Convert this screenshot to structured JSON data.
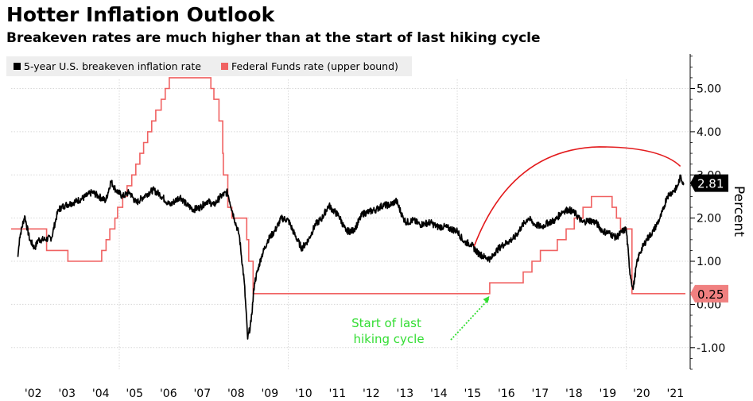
{
  "header": {
    "title": "Hotter Inflation Outlook",
    "subtitle": "Breakeven rates are much higher than at the start of last hiking cycle"
  },
  "chart_data": {
    "type": "line",
    "ylabel": "Percent",
    "ylim": [
      -1.5,
      5.8
    ],
    "xlim": [
      2001.8,
      2021.75
    ],
    "yticks": [
      -1.0,
      0.0,
      1.0,
      2.0,
      3.0,
      4.0,
      5.0
    ],
    "ytick_labels": [
      "-1.00",
      "0.00",
      "1.00",
      "2.00",
      "3.00",
      "4.00",
      "5.00"
    ],
    "xticks": [
      2002,
      2003,
      2004,
      2005,
      2006,
      2007,
      2008,
      2009,
      2010,
      2011,
      2012,
      2013,
      2014,
      2015,
      2016,
      2017,
      2018,
      2019,
      2020,
      2021
    ],
    "xtick_labels": [
      "'02",
      "'03",
      "'04",
      "'05",
      "'06",
      "'07",
      "'08",
      "'09",
      "'10",
      "'11",
      "'12",
      "'13",
      "'14",
      "'15",
      "'16",
      "'17",
      "'18",
      "'19",
      "'20",
      "'21"
    ],
    "legend": [
      "5-year U.S. breakeven inflation rate",
      "Federal Funds rate (upper bound)"
    ],
    "last_values": {
      "breakeven": "2.81",
      "fed_funds": "0.25"
    },
    "annotation": {
      "line1": "Start of last",
      "line2": "hiking cycle",
      "x": 2015.95,
      "y": 0.25
    },
    "series": [
      {
        "name": "5-year U.S. breakeven inflation rate",
        "color": "#000000",
        "x": [
          2002.0,
          2002.05,
          2002.2,
          2002.35,
          2002.5,
          2002.6,
          2002.8,
          2003.0,
          2003.1,
          2003.2,
          2003.4,
          2003.6,
          2003.9,
          2004.2,
          2004.4,
          2004.6,
          2004.75,
          2004.9,
          2005.1,
          2005.3,
          2005.5,
          2005.8,
          2006.0,
          2006.2,
          2006.5,
          2006.8,
          2007.0,
          2007.2,
          2007.4,
          2007.6,
          2007.8,
          2008.0,
          2008.2,
          2008.4,
          2008.55,
          2008.7,
          2008.8,
          2008.9,
          2009.0,
          2009.2,
          2009.4,
          2009.6,
          2009.8,
          2010.0,
          2010.2,
          2010.4,
          2010.6,
          2010.8,
          2011.0,
          2011.2,
          2011.3,
          2011.5,
          2011.7,
          2011.9,
          2012.0,
          2012.2,
          2012.4,
          2012.6,
          2012.8,
          2013.0,
          2013.2,
          2013.4,
          2013.5,
          2013.7,
          2013.9,
          2014.2,
          2014.4,
          2014.6,
          2014.8,
          2015.0,
          2015.2,
          2015.4,
          2015.6,
          2015.8,
          2016.0,
          2016.1,
          2016.3,
          2016.5,
          2016.7,
          2016.9,
          2017.1,
          2017.3,
          2017.5,
          2017.7,
          2017.9,
          2018.1,
          2018.3,
          2018.5,
          2018.7,
          2018.9,
          2019.1,
          2019.3,
          2019.5,
          2019.7,
          2019.9,
          2020.0,
          2020.1,
          2020.2,
          2020.3,
          2020.4,
          2020.6,
          2020.8,
          2021.0,
          2021.1,
          2021.2,
          2021.35,
          2021.5,
          2021.6,
          2021.7
        ],
        "values": [
          1.1,
          1.55,
          2.05,
          1.5,
          1.3,
          1.5,
          1.5,
          1.55,
          1.9,
          2.2,
          2.3,
          2.35,
          2.45,
          2.6,
          2.5,
          2.4,
          2.85,
          2.65,
          2.5,
          2.6,
          2.35,
          2.55,
          2.65,
          2.55,
          2.3,
          2.5,
          2.3,
          2.2,
          2.25,
          2.4,
          2.3,
          2.5,
          2.6,
          2.0,
          1.6,
          0.5,
          -0.8,
          -0.4,
          0.5,
          1.1,
          1.5,
          1.7,
          2.0,
          1.95,
          1.6,
          1.3,
          1.5,
          1.85,
          2.0,
          2.3,
          2.2,
          2.05,
          1.7,
          1.7,
          1.8,
          2.1,
          2.15,
          2.2,
          2.3,
          2.3,
          2.4,
          2.0,
          1.9,
          1.95,
          1.85,
          1.9,
          1.8,
          1.8,
          1.75,
          1.7,
          1.45,
          1.4,
          1.2,
          1.1,
          1.05,
          1.2,
          1.35,
          1.45,
          1.55,
          1.8,
          2.0,
          1.85,
          1.8,
          1.9,
          1.95,
          2.15,
          2.2,
          2.1,
          1.9,
          1.95,
          1.9,
          1.7,
          1.65,
          1.55,
          1.7,
          1.75,
          0.8,
          0.35,
          0.9,
          1.2,
          1.5,
          1.7,
          2.0,
          2.2,
          2.5,
          2.6,
          2.7,
          2.95,
          2.81
        ]
      },
      {
        "name": "Federal Funds rate (upper bound)",
        "color": "#f06262",
        "x": [
          2001.8,
          2001.95,
          2001.95,
          2002.85,
          2002.85,
          2003.48,
          2003.48,
          2004.48,
          2004.48,
          2004.61,
          2004.61,
          2004.72,
          2004.72,
          2004.87,
          2004.87,
          2004.95,
          2004.95,
          2005.1,
          2005.1,
          2005.23,
          2005.23,
          2005.37,
          2005.37,
          2005.49,
          2005.49,
          2005.61,
          2005.61,
          2005.72,
          2005.72,
          2005.84,
          2005.84,
          2005.96,
          2005.96,
          2006.08,
          2006.08,
          2006.24,
          2006.24,
          2006.36,
          2006.36,
          2006.48,
          2006.48,
          2007.71,
          2007.71,
          2007.8,
          2007.8,
          2007.95,
          2007.95,
          2008.06,
          2008.06,
          2008.08,
          2008.08,
          2008.21,
          2008.21,
          2008.33,
          2008.33,
          2008.77,
          2008.77,
          2008.83,
          2008.83,
          2008.96,
          2008.96,
          2015.96,
          2015.96,
          2016.95,
          2016.95,
          2017.21,
          2017.21,
          2017.46,
          2017.46,
          2017.96,
          2017.96,
          2018.22,
          2018.22,
          2018.46,
          2018.46,
          2018.72,
          2018.72,
          2018.97,
          2018.97,
          2019.58,
          2019.58,
          2019.71,
          2019.71,
          2019.83,
          2019.83,
          2020.17,
          2020.17,
          2021.75
        ],
        "values": [
          1.75,
          1.75,
          1.75,
          1.75,
          1.25,
          1.25,
          1.0,
          1.0,
          1.25,
          1.25,
          1.5,
          1.5,
          1.75,
          1.75,
          2.0,
          2.0,
          2.25,
          2.25,
          2.5,
          2.5,
          2.75,
          2.75,
          3.0,
          3.0,
          3.25,
          3.25,
          3.5,
          3.5,
          3.75,
          3.75,
          4.0,
          4.0,
          4.25,
          4.25,
          4.5,
          4.5,
          4.75,
          4.75,
          5.0,
          5.0,
          5.25,
          5.25,
          5.0,
          5.0,
          4.75,
          4.75,
          4.25,
          4.25,
          3.5,
          3.5,
          3.0,
          3.0,
          2.25,
          2.25,
          2.0,
          2.0,
          1.5,
          1.5,
          1.0,
          1.0,
          0.25,
          0.25,
          0.5,
          0.5,
          0.75,
          0.75,
          1.0,
          1.0,
          1.25,
          1.25,
          1.5,
          1.5,
          1.75,
          1.75,
          2.0,
          2.0,
          2.25,
          2.25,
          2.5,
          2.5,
          2.25,
          2.25,
          2.0,
          2.0,
          1.75,
          1.75,
          0.25,
          0.25
        ]
      }
    ],
    "colors": {
      "breakeven": "#000000",
      "fed_funds": "#f06262",
      "fed_funds_label_bg": "#f08080",
      "arc": "#e31a1c",
      "annotation": "#33dd33",
      "grid": "#d8d8d8",
      "legend_bg": "#eeeeee"
    }
  }
}
